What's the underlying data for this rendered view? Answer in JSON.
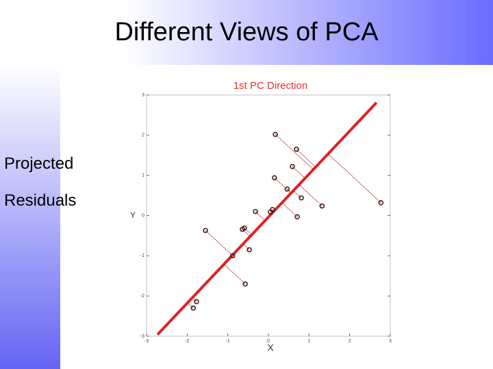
{
  "slide": {
    "title": "Different Views of PCA",
    "bullets": [
      "Projected",
      "Residuals"
    ]
  },
  "chart_data": {
    "type": "scatter",
    "title": "1st PC Direction",
    "x_label": "X",
    "y_label": "Y",
    "x": [
      0.17,
      0.69,
      0.59,
      0.15,
      0.46,
      0.81,
      1.32,
      2.77,
      0.71,
      0.1,
      0.05,
      -0.32,
      -0.59,
      -0.64,
      -1.55,
      -0.47,
      -0.88,
      -0.57,
      -1.77,
      -1.85
    ],
    "y": [
      2.02,
      1.65,
      1.22,
      0.94,
      0.66,
      0.44,
      0.24,
      0.32,
      -0.03,
      0.15,
      0.09,
      0.1,
      -0.31,
      -0.34,
      -0.37,
      -0.85,
      -1.0,
      -1.7,
      -2.14,
      -2.3
    ],
    "pc_line": {
      "x": [
        -2.73,
        2.66
      ],
      "y": [
        -2.96,
        2.81
      ],
      "color": "#e02020"
    },
    "point_color": "#402020",
    "residual_color": "#b03030",
    "xlim": [
      -3,
      3
    ],
    "ylim": [
      -3,
      3
    ],
    "xticks": [
      -3,
      -2,
      -1,
      0,
      1,
      2,
      3
    ],
    "yticks": [
      -3,
      -2,
      -1,
      0,
      1,
      2,
      3
    ]
  }
}
